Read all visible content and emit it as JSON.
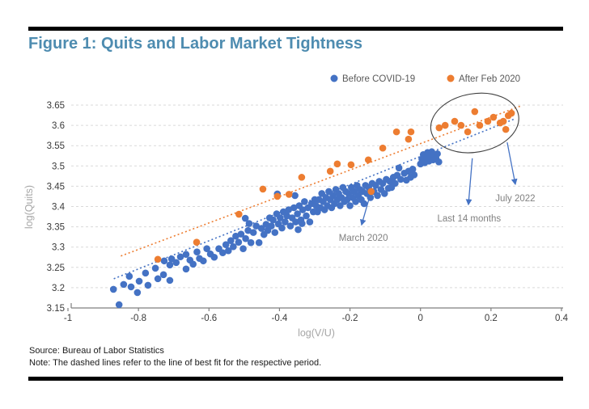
{
  "header": {
    "title": "Figure 1: Quits and Labor Market Tightness",
    "title_color": "#4e8cb0"
  },
  "footer": {
    "source": "Source: Bureau of Labor Statistics",
    "note": "Note: The dashed lines refer to the line of best fit for the respective period."
  },
  "chart_data": {
    "type": "scatter",
    "title": "Figure 1: Quits and Labor Market Tightness",
    "xlabel": "log(V/U)",
    "ylabel": "log(Quits)",
    "xlim": [
      -1,
      0.4
    ],
    "ylim": [
      3.15,
      3.65
    ],
    "x_ticks": [
      -1,
      -0.8,
      -0.6,
      -0.4,
      -0.2,
      0,
      0.2,
      0.4
    ],
    "x_tick_labels": [
      "-1",
      "-0.8",
      "-0.6",
      "-0.4",
      "-0.2",
      "0",
      "0.2",
      "0.4"
    ],
    "y_ticks": [
      3.15,
      3.2,
      3.25,
      3.3,
      3.35,
      3.4,
      3.45,
      3.5,
      3.55,
      3.6,
      3.65
    ],
    "y_tick_labels": [
      "3.15",
      "3.2",
      "3.25",
      "3.3",
      "3.35",
      "3.4",
      "3.45",
      "3.5",
      "3.55",
      "3.6",
      "3.65"
    ],
    "grid": "horizontal-dashed",
    "grid_color": "#d9d9d9",
    "axis_color": "#7f7f7f",
    "tick_label_color": "#3a3a3a",
    "axis_title_color": "#a6a6a6",
    "annotation_color": "#808080",
    "legend_position": "top-right",
    "legend_text_color": "#595959",
    "series": [
      {
        "name": "Before COVID-19",
        "color": "#4472c4",
        "points": [
          [
            -0.871,
            3.196
          ],
          [
            -0.855,
            3.158
          ],
          [
            -0.842,
            3.208
          ],
          [
            -0.826,
            3.228
          ],
          [
            -0.821,
            3.202
          ],
          [
            -0.803,
            3.188
          ],
          [
            -0.798,
            3.216
          ],
          [
            -0.78,
            3.236
          ],
          [
            -0.773,
            3.206
          ],
          [
            -0.752,
            3.248
          ],
          [
            -0.745,
            3.222
          ],
          [
            -0.729,
            3.232
          ],
          [
            -0.727,
            3.266
          ],
          [
            -0.711,
            3.256
          ],
          [
            -0.711,
            3.218
          ],
          [
            -0.706,
            3.271
          ],
          [
            -0.693,
            3.262
          ],
          [
            -0.681,
            3.276
          ],
          [
            -0.665,
            3.282
          ],
          [
            -0.665,
            3.246
          ],
          [
            -0.654,
            3.268
          ],
          [
            -0.645,
            3.258
          ],
          [
            -0.634,
            3.288
          ],
          [
            -0.627,
            3.272
          ],
          [
            -0.616,
            3.266
          ],
          [
            -0.606,
            3.296
          ],
          [
            -0.596,
            3.283
          ],
          [
            -0.585,
            3.275
          ],
          [
            -0.572,
            3.296
          ],
          [
            -0.561,
            3.286
          ],
          [
            -0.552,
            3.306
          ],
          [
            -0.545,
            3.291
          ],
          [
            -0.538,
            3.316
          ],
          [
            -0.531,
            3.301
          ],
          [
            -0.524,
            3.327
          ],
          [
            -0.516,
            3.312
          ],
          [
            -0.509,
            3.332
          ],
          [
            -0.503,
            3.296
          ],
          [
            -0.497,
            3.371
          ],
          [
            -0.496,
            3.321
          ],
          [
            -0.489,
            3.341
          ],
          [
            -0.486,
            3.358
          ],
          [
            -0.481,
            3.311
          ],
          [
            -0.474,
            3.336
          ],
          [
            -0.466,
            3.352
          ],
          [
            -0.458,
            3.311
          ],
          [
            -0.451,
            3.346
          ],
          [
            -0.444,
            3.331
          ],
          [
            -0.438,
            3.356
          ],
          [
            -0.433,
            3.341
          ],
          [
            -0.428,
            3.372
          ],
          [
            -0.423,
            3.352
          ],
          [
            -0.418,
            3.367
          ],
          [
            -0.413,
            3.336
          ],
          [
            -0.408,
            3.382
          ],
          [
            -0.406,
            3.431
          ],
          [
            -0.403,
            3.357
          ],
          [
            -0.398,
            3.372
          ],
          [
            -0.393,
            3.347
          ],
          [
            -0.389,
            3.387
          ],
          [
            -0.384,
            3.362
          ],
          [
            -0.379,
            3.377
          ],
          [
            -0.374,
            3.392
          ],
          [
            -0.369,
            3.352
          ],
          [
            -0.364,
            3.372
          ],
          [
            -0.359,
            3.397
          ],
          [
            -0.356,
            3.427
          ],
          [
            -0.354,
            3.362
          ],
          [
            -0.349,
            3.382
          ],
          [
            -0.347,
            3.343
          ],
          [
            -0.344,
            3.402
          ],
          [
            -0.339,
            3.367
          ],
          [
            -0.336,
            3.358
          ],
          [
            -0.334,
            3.392
          ],
          [
            -0.329,
            3.412
          ],
          [
            -0.324,
            3.377
          ],
          [
            -0.319,
            3.397
          ],
          [
            -0.314,
            3.362
          ],
          [
            -0.309,
            3.407
          ],
          [
            -0.304,
            3.387
          ],
          [
            -0.3,
            3.417
          ],
          [
            -0.296,
            3.402
          ],
          [
            -0.292,
            3.387
          ],
          [
            -0.288,
            3.417
          ],
          [
            -0.284,
            3.397
          ],
          [
            -0.28,
            3.432
          ],
          [
            -0.276,
            3.412
          ],
          [
            -0.272,
            3.392
          ],
          [
            -0.268,
            3.422
          ],
          [
            -0.264,
            3.402
          ],
          [
            -0.26,
            3.437
          ],
          [
            -0.256,
            3.417
          ],
          [
            -0.252,
            3.397
          ],
          [
            -0.248,
            3.427
          ],
          [
            -0.244,
            3.407
          ],
          [
            -0.24,
            3.442
          ],
          [
            -0.236,
            3.417
          ],
          [
            -0.232,
            3.432
          ],
          [
            -0.228,
            3.402
          ],
          [
            -0.224,
            3.422
          ],
          [
            -0.22,
            3.447
          ],
          [
            -0.216,
            3.412
          ],
          [
            -0.212,
            3.437
          ],
          [
            -0.208,
            3.417
          ],
          [
            -0.204,
            3.432
          ],
          [
            -0.2,
            3.402
          ],
          [
            -0.196,
            3.447
          ],
          [
            -0.192,
            3.422
          ],
          [
            -0.188,
            3.437
          ],
          [
            -0.184,
            3.412
          ],
          [
            -0.18,
            3.452
          ],
          [
            -0.176,
            3.427
          ],
          [
            -0.172,
            3.442
          ],
          [
            -0.168,
            3.417
          ],
          [
            -0.164,
            3.437
          ],
          [
            -0.16,
            3.407
          ],
          [
            -0.156,
            3.452
          ],
          [
            -0.152,
            3.432
          ],
          [
            -0.147,
            3.447
          ],
          [
            -0.142,
            3.422
          ],
          [
            -0.137,
            3.457
          ],
          [
            -0.132,
            3.437
          ],
          [
            -0.127,
            3.452
          ],
          [
            -0.122,
            3.427
          ],
          [
            -0.117,
            3.462
          ],
          [
            -0.112,
            3.442
          ],
          [
            -0.107,
            3.457
          ],
          [
            -0.102,
            3.432
          ],
          [
            -0.097,
            3.467
          ],
          [
            -0.091,
            3.445
          ],
          [
            -0.087,
            3.462
          ],
          [
            -0.082,
            3.447
          ],
          [
            -0.077,
            3.472
          ],
          [
            -0.072,
            3.457
          ],
          [
            -0.066,
            3.477
          ],
          [
            -0.061,
            3.495
          ],
          [
            -0.056,
            3.467
          ],
          [
            -0.046,
            3.482
          ],
          [
            -0.04,
            3.465
          ],
          [
            -0.034,
            3.487
          ],
          [
            -0.028,
            3.472
          ],
          [
            -0.022,
            3.492
          ],
          [
            -0.018,
            3.478
          ],
          [
            0.0,
            3.505
          ],
          [
            0.004,
            3.517
          ],
          [
            0.008,
            3.528
          ],
          [
            0.012,
            3.508
          ],
          [
            0.016,
            3.521
          ],
          [
            0.02,
            3.533
          ],
          [
            0.024,
            3.512
          ],
          [
            0.028,
            3.524
          ],
          [
            0.032,
            3.535
          ],
          [
            0.036,
            3.515
          ],
          [
            0.04,
            3.527
          ],
          [
            0.044,
            3.519
          ],
          [
            0.048,
            3.53
          ],
          [
            0.052,
            3.51
          ]
        ]
      },
      {
        "name": "After Feb 2020",
        "color": "#ed7d31",
        "points": [
          [
            -0.745,
            3.27
          ],
          [
            -0.635,
            3.312
          ],
          [
            -0.515,
            3.381
          ],
          [
            -0.447,
            3.443
          ],
          [
            -0.406,
            3.425
          ],
          [
            -0.373,
            3.43
          ],
          [
            -0.337,
            3.472
          ],
          [
            -0.256,
            3.487
          ],
          [
            -0.236,
            3.505
          ],
          [
            -0.197,
            3.503
          ],
          [
            -0.148,
            3.515
          ],
          [
            -0.14,
            3.437
          ],
          [
            -0.107,
            3.544
          ],
          [
            -0.068,
            3.584
          ],
          [
            -0.034,
            3.566
          ],
          [
            -0.027,
            3.584
          ],
          [
            0.053,
            3.594
          ],
          [
            0.07,
            3.6
          ],
          [
            0.097,
            3.61
          ],
          [
            0.115,
            3.6
          ],
          [
            0.134,
            3.584
          ],
          [
            0.154,
            3.634
          ],
          [
            0.168,
            3.6
          ],
          [
            0.191,
            3.61
          ],
          [
            0.207,
            3.62
          ],
          [
            0.226,
            3.606
          ],
          [
            0.235,
            3.61
          ],
          [
            0.242,
            3.59
          ],
          [
            0.249,
            3.624
          ],
          [
            0.258,
            3.63
          ]
        ]
      }
    ],
    "trendlines": [
      {
        "series": "Before COVID-19",
        "color": "#4472c4",
        "style": "dotted",
        "from": [
          -0.87,
          3.222
        ],
        "to": [
          0.27,
          3.617
        ]
      },
      {
        "series": "After Feb 2020",
        "color": "#ed7d31",
        "style": "dotted",
        "from": [
          -0.85,
          3.278
        ],
        "to": [
          0.285,
          3.648
        ]
      }
    ],
    "annotations": [
      {
        "text": "March 2020",
        "text_at": [
          -0.162,
          3.315
        ],
        "arrow_from": [
          -0.144,
          3.425
        ],
        "arrow_to": [
          -0.167,
          3.355
        ]
      },
      {
        "text": "Last 14 months",
        "text_at": [
          0.138,
          3.363
        ],
        "arrow_from": [
          0.147,
          3.519
        ],
        "arrow_to": [
          0.136,
          3.405
        ]
      },
      {
        "text": "July 2022",
        "text_at": [
          0.269,
          3.413
        ],
        "arrow_from": [
          0.246,
          3.558
        ],
        "arrow_to": [
          0.269,
          3.455
        ]
      }
    ],
    "ellipse": {
      "center": [
        0.154,
        3.606
      ],
      "rx": 0.126,
      "ry": 0.072,
      "rotate_deg": -10,
      "color": "#404040"
    }
  }
}
